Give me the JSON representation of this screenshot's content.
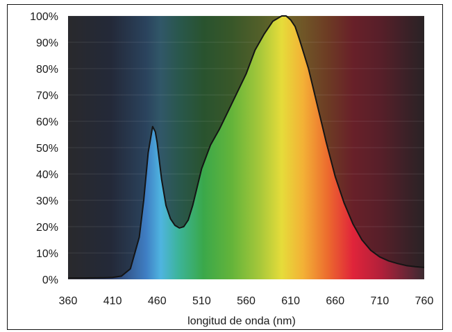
{
  "chart_data": {
    "type": "area",
    "title": "",
    "xlabel": "longitud de onda (nm)",
    "ylabel": "",
    "xlim": [
      360,
      760
    ],
    "ylim": [
      0,
      100
    ],
    "x_ticks": [
      "360",
      "410",
      "460",
      "510",
      "560",
      "610",
      "660",
      "710",
      "760"
    ],
    "y_ticks": [
      "0%",
      "10%",
      "20%",
      "30%",
      "40%",
      "50%",
      "60%",
      "70%",
      "80%",
      "90%",
      "100%"
    ],
    "grid": true,
    "background": "visible-spectrum-gradient",
    "series": [
      {
        "x": [
          360,
          380,
          400,
          410,
          420,
          430,
          440,
          445,
          450,
          455,
          458,
          460,
          465,
          470,
          475,
          480,
          485,
          490,
          495,
          500,
          510,
          520,
          530,
          540,
          550,
          560,
          570,
          580,
          590,
          600,
          605,
          610,
          615,
          620,
          630,
          640,
          650,
          660,
          670,
          680,
          690,
          700,
          710,
          720,
          730,
          740,
          750,
          760
        ],
        "values": [
          0.5,
          0.5,
          0.6,
          0.7,
          1.2,
          4,
          16,
          30,
          48,
          58,
          56,
          52,
          38,
          28,
          23,
          20.5,
          19.5,
          20,
          22.5,
          28,
          42,
          51,
          57,
          64,
          71,
          78,
          87,
          93,
          98,
          100,
          100,
          98.5,
          96,
          91,
          80,
          66,
          52,
          39,
          29,
          21,
          15,
          11,
          8.5,
          7,
          6,
          5.2,
          4.8,
          4.5
        ]
      }
    ]
  }
}
